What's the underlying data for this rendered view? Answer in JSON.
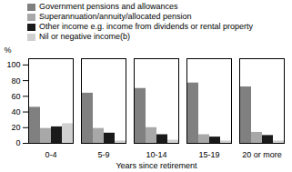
{
  "chart_data": {
    "type": "bar",
    "categories": [
      "0-4",
      "5-9",
      "10-14",
      "15-19",
      "20 or more"
    ],
    "series": [
      {
        "name": "Government pensions and allowances",
        "color": "#808080",
        "values": [
          46,
          64,
          70,
          77,
          72
        ]
      },
      {
        "name": "Superannuation/annuity/allocated pension",
        "color": "#a8a8a8",
        "values": [
          19,
          19,
          20,
          11,
          14
        ]
      },
      {
        "name": "Other income e.g. income from dividends or rental property",
        "color": "#1a1a1a",
        "values": [
          21,
          13,
          11,
          8,
          10
        ]
      },
      {
        "name": "Nil or negative income(b)",
        "color": "#d0d0d0",
        "values": [
          25,
          3,
          4,
          3,
          3
        ]
      }
    ],
    "ylabel": "%",
    "xlabel": "Years since retirement",
    "ylim": [
      0,
      108
    ],
    "yticks": [
      0,
      20,
      40,
      60,
      80,
      100
    ],
    "grid": false,
    "legend": "upper left"
  }
}
